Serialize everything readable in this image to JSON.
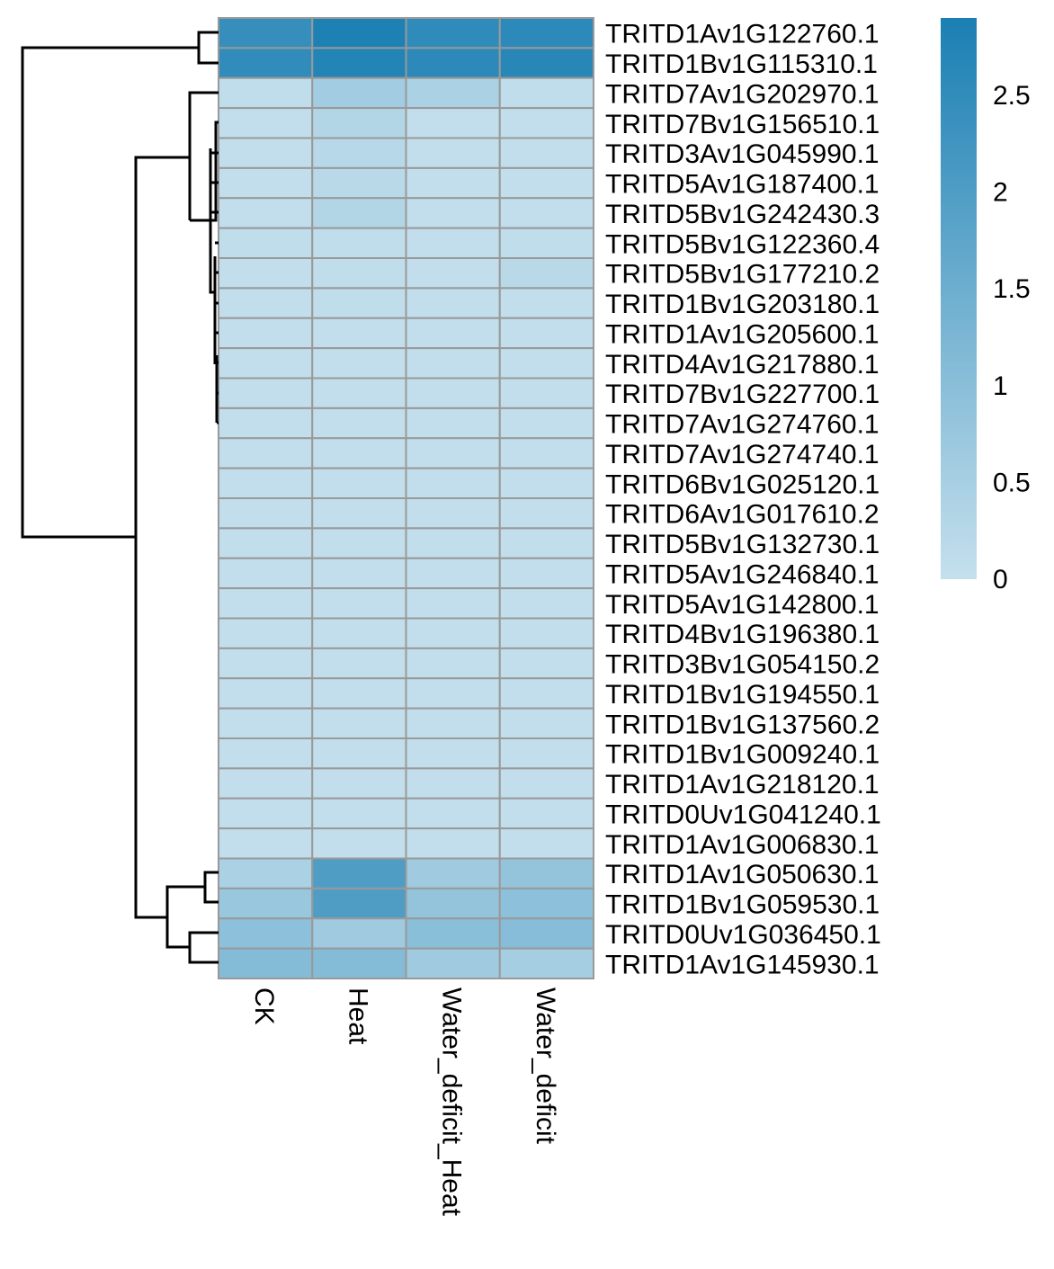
{
  "chart_data": {
    "type": "heatmap",
    "title": "",
    "columns": [
      "CK",
      "Heat",
      "Water_deficit_Heat",
      "Water_deficit"
    ],
    "rows": [
      "TRITD1Av1G122760.1",
      "TRITD1Bv1G115310.1",
      "TRITD7Av1G202970.1",
      "TRITD7Bv1G156510.1",
      "TRITD3Av1G045990.1",
      "TRITD5Av1G187400.1",
      "TRITD5Bv1G242430.3",
      "TRITD5Bv1G122360.4",
      "TRITD5Bv1G177210.2",
      "TRITD1Bv1G203180.1",
      "TRITD1Av1G205600.1",
      "TRITD4Av1G217880.1",
      "TRITD7Bv1G227700.1",
      "TRITD7Av1G274760.1",
      "TRITD7Av1G274740.1",
      "TRITD6Bv1G025120.1",
      "TRITD6Av1G017610.2",
      "TRITD5Bv1G132730.1",
      "TRITD5Av1G246840.1",
      "TRITD5Av1G142800.1",
      "TRITD4Bv1G196380.1",
      "TRITD3Bv1G054150.2",
      "TRITD1Bv1G194550.1",
      "TRITD1Bv1G137560.2",
      "TRITD1Bv1G009240.1",
      "TRITD1Av1G218120.1",
      "TRITD0Uv1G041240.1",
      "TRITD1Av1G006830.1",
      "TRITD1Av1G050630.1",
      "TRITD1Bv1G059530.1",
      "TRITD0Uv1G036450.1",
      "TRITD1Av1G145930.1"
    ],
    "values": [
      [
        2.45,
        2.85,
        2.55,
        2.6
      ],
      [
        2.5,
        2.75,
        2.6,
        2.65
      ],
      [
        0.1,
        0.6,
        0.45,
        0.1
      ],
      [
        0.05,
        0.3,
        0.05,
        0.05
      ],
      [
        0.05,
        0.25,
        0.05,
        0.05
      ],
      [
        0.05,
        0.2,
        0.05,
        0.05
      ],
      [
        0.05,
        0.3,
        0.05,
        0.05
      ],
      [
        0.1,
        0.1,
        0.05,
        0.1
      ],
      [
        0.05,
        0.1,
        0.05,
        0.2
      ],
      [
        0.05,
        0.1,
        0.05,
        0.05
      ],
      [
        0.05,
        0.05,
        0.05,
        0.05
      ],
      [
        0.05,
        0.05,
        0.05,
        0.05
      ],
      [
        0.05,
        0.05,
        0.05,
        0.05
      ],
      [
        0.05,
        0.05,
        0.05,
        0.05
      ],
      [
        0.05,
        0.05,
        0.05,
        0.05
      ],
      [
        0.05,
        0.05,
        0.05,
        0.05
      ],
      [
        0.05,
        0.05,
        0.05,
        0.05
      ],
      [
        0.05,
        0.05,
        0.05,
        0.05
      ],
      [
        0.05,
        0.05,
        0.05,
        0.05
      ],
      [
        0.05,
        0.05,
        0.05,
        0.05
      ],
      [
        0.05,
        0.05,
        0.05,
        0.05
      ],
      [
        0.05,
        0.05,
        0.05,
        0.05
      ],
      [
        0.05,
        0.05,
        0.05,
        0.05
      ],
      [
        0.05,
        0.05,
        0.05,
        0.05
      ],
      [
        0.05,
        0.05,
        0.05,
        0.05
      ],
      [
        0.05,
        0.05,
        0.05,
        0.05
      ],
      [
        0.05,
        0.05,
        0.05,
        0.05
      ],
      [
        0.05,
        0.05,
        0.05,
        0.05
      ],
      [
        0.45,
        2.0,
        0.65,
        0.85
      ],
      [
        0.75,
        2.0,
        0.85,
        0.95
      ],
      [
        0.95,
        0.65,
        1.0,
        1.05
      ],
      [
        1.1,
        1.1,
        0.65,
        0.55
      ]
    ],
    "legend": {
      "ticks": [
        "0",
        "0.5",
        "1",
        "1.5",
        "2",
        "2.5"
      ],
      "tick_values": [
        0,
        0.5,
        1,
        1.5,
        2,
        2.5
      ],
      "min": 0,
      "max": 2.9,
      "color_low": "#c5e0ed",
      "color_high": "#1a7fb3",
      "placement": "top-right"
    },
    "cell_border_color": "#999999",
    "row_dendrogram": true,
    "grid": false
  }
}
